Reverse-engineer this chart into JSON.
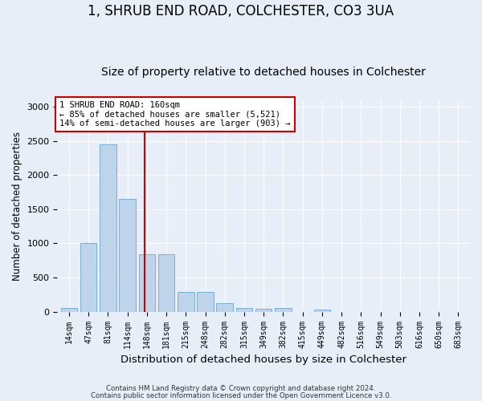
{
  "title": "1, SHRUB END ROAD, COLCHESTER, CO3 3UA",
  "subtitle": "Size of property relative to detached houses in Colchester",
  "xlabel": "Distribution of detached houses by size in Colchester",
  "ylabel": "Number of detached properties",
  "categories": [
    "14sqm",
    "47sqm",
    "81sqm",
    "114sqm",
    "148sqm",
    "181sqm",
    "215sqm",
    "248sqm",
    "282sqm",
    "315sqm",
    "349sqm",
    "382sqm",
    "415sqm",
    "449sqm",
    "482sqm",
    "516sqm",
    "549sqm",
    "583sqm",
    "616sqm",
    "650sqm",
    "683sqm"
  ],
  "values": [
    50,
    1000,
    2450,
    1650,
    840,
    840,
    290,
    290,
    130,
    50,
    45,
    60,
    0,
    30,
    0,
    0,
    0,
    0,
    0,
    0,
    0
  ],
  "bar_color": "#bdd4ea",
  "bar_edge_color": "#7aaed4",
  "vline_x": 3.88,
  "vline_color": "#cc0000",
  "annotation_text": "1 SHRUB END ROAD: 160sqm\n← 85% of detached houses are smaller (5,521)\n14% of semi-detached houses are larger (903) →",
  "annotation_box_color": "#cc0000",
  "ylim": [
    0,
    3100
  ],
  "yticks": [
    0,
    500,
    1000,
    1500,
    2000,
    2500,
    3000
  ],
  "footer1": "Contains HM Land Registry data © Crown copyright and database right 2024.",
  "footer2": "Contains public sector information licensed under the Open Government Licence v3.0.",
  "bg_color": "#e8eef8",
  "plot_bg_color": "#e8eef8",
  "title_fontsize": 12,
  "subtitle_fontsize": 10,
  "xlabel_fontsize": 9.5,
  "ylabel_fontsize": 8.5,
  "annotation_fontsize": 7.5
}
